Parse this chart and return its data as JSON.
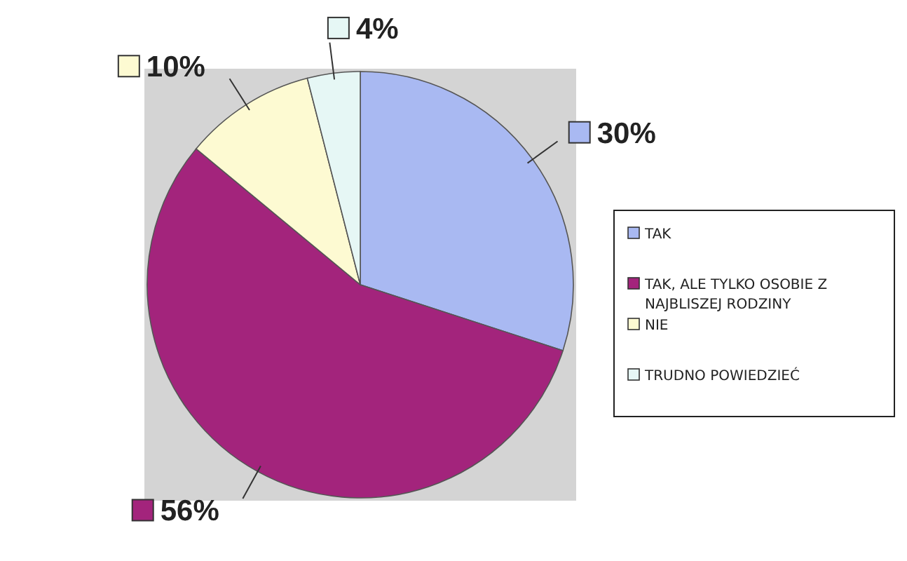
{
  "chart_data": {
    "type": "pie",
    "categories": [
      "TAK",
      "TAK, ALE TYLKO OSOBIE Z NAJBLISZEJ RODZINY",
      "NIE",
      "TRUDNO POWIEDZIEĆ"
    ],
    "values": [
      30,
      56,
      10,
      4
    ],
    "colors": [
      "#a9b9f2",
      "#a3247c",
      "#fdfad2",
      "#e6f7f5"
    ],
    "value_labels": [
      "30%",
      "56%",
      "10%",
      "4%"
    ],
    "legend": "right"
  }
}
